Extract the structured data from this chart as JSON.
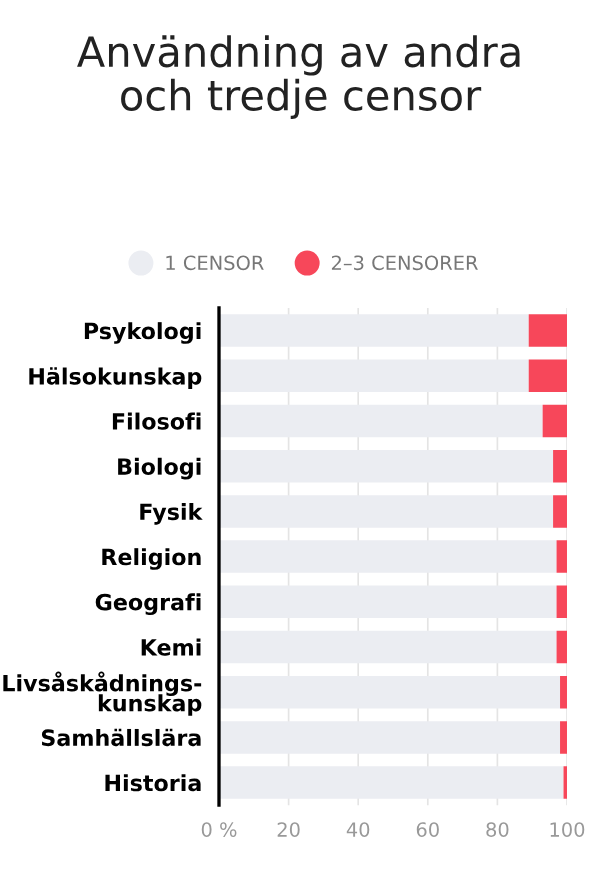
{
  "chart_data": {
    "type": "bar",
    "title": "Användning av andra\noch tredje censor",
    "orientation": "horizontal",
    "stacked": true,
    "categories": [
      "Psykologi",
      "Hälsokunskap",
      "Filosofi",
      "Biologi",
      "Fysik",
      "Religion",
      "Geografi",
      "Kemi",
      "Livsåskådnings-\nkunskap",
      "Samhällslära",
      "Historia"
    ],
    "series": [
      {
        "name": "1 CENSOR",
        "color": "#ebedf2",
        "values": [
          89,
          89,
          93,
          96,
          96,
          97,
          97,
          97,
          98,
          98,
          99
        ]
      },
      {
        "name": "2–3 CENSORER",
        "color": "#f7475a",
        "values": [
          11,
          11,
          7,
          4,
          4,
          3,
          3,
          3,
          2,
          2,
          1
        ]
      }
    ],
    "xlim": [
      0,
      100
    ],
    "xticks": [
      {
        "value": 0,
        "label": "0 %"
      },
      20,
      40,
      60,
      80,
      100
    ],
    "grid": "x",
    "legend": "top"
  }
}
